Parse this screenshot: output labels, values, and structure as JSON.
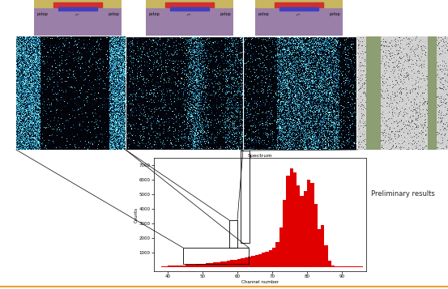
{
  "chart_data": {
    "type": "histogram",
    "title": "Spectrum",
    "x_label": "Channel number",
    "y_label": "Counts",
    "bins": [
      38,
      39,
      40,
      41,
      42,
      43,
      44,
      45,
      46,
      47,
      48,
      49,
      50,
      51,
      52,
      53,
      54,
      55,
      56,
      57,
      58,
      59,
      60,
      61,
      62,
      63,
      64,
      65,
      66,
      67,
      68,
      69,
      70,
      71,
      72,
      73,
      74,
      75,
      76,
      77,
      78,
      79,
      80,
      81,
      82,
      83,
      84,
      85,
      86,
      87,
      88,
      89,
      90,
      91,
      92,
      93,
      94,
      95,
      96
    ],
    "counts": [
      50,
      60,
      70,
      80,
      90,
      100,
      110,
      120,
      140,
      160,
      180,
      200,
      220,
      240,
      260,
      290,
      320,
      350,
      380,
      420,
      460,
      500,
      540,
      580,
      620,
      680,
      740,
      800,
      880,
      960,
      1050,
      1150,
      1300,
      1700,
      2700,
      4600,
      6300,
      6800,
      6500,
      5600,
      4900,
      5200,
      6000,
      5800,
      4300,
      2600,
      2900,
      1500,
      400,
      100,
      40,
      30,
      20,
      20,
      10,
      10,
      10,
      10
    ],
    "color": "#e00000",
    "xlim": [
      36,
      97
    ],
    "ylim": [
      -300,
      7500
    ],
    "xticks": [
      40,
      50,
      60,
      70,
      80,
      90
    ],
    "yticks": [
      1000,
      2000,
      3000,
      4000,
      5000,
      6000,
      7000
    ]
  },
  "annotation": "Preliminary results",
  "cross_sections": [
    {
      "left": "pstop",
      "center": "p+",
      "right": "pstop"
    },
    {
      "left": "pstop",
      "center": "p+",
      "right": "pstop"
    },
    {
      "left": "pstop",
      "center": "p+",
      "right": "pstop"
    }
  ]
}
